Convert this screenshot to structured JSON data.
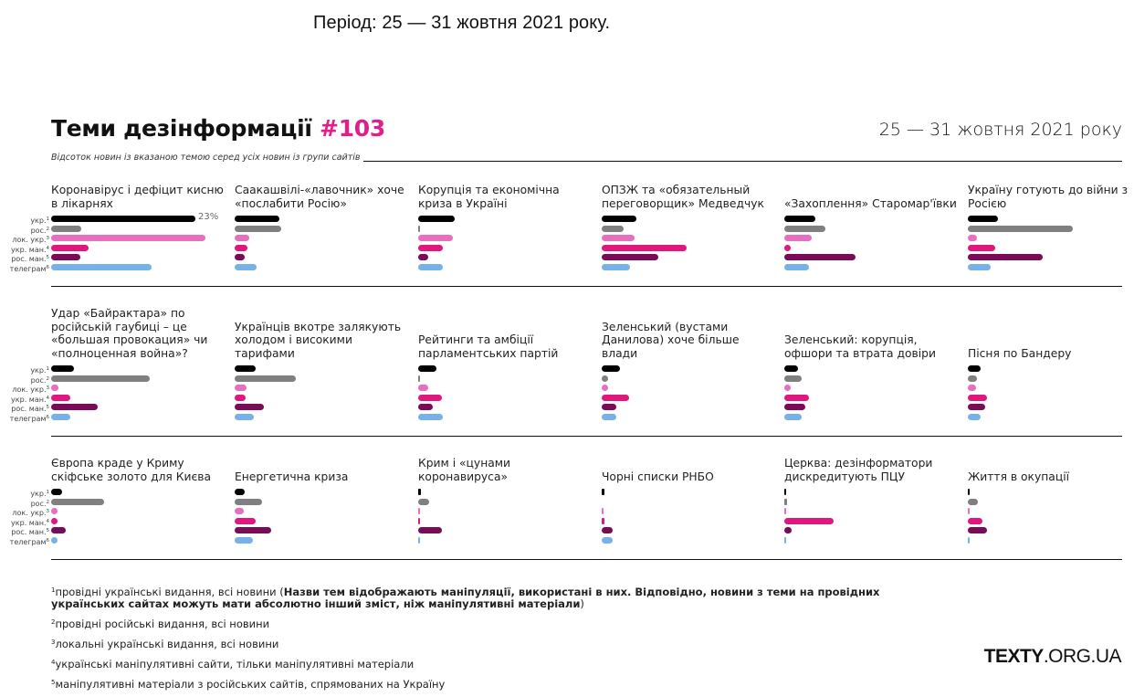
{
  "header": {
    "period_text": "Період: 25 — 31 жовтня 2021 року."
  },
  "chart_data": {
    "type": "bar",
    "title": "Теми дезінформації",
    "title_number": "#103",
    "date_range": "25 — 31 жовтня 2021 року",
    "subtitle": "Відсоток новин із вказаною темою серед усіх новин із групи сайтів",
    "unit": "%",
    "max_label": "23%",
    "xlim": [
      0,
      25
    ],
    "series": [
      {
        "key": "ukr",
        "label": "укр.",
        "note": "1",
        "color": "#000000"
      },
      {
        "key": "ros",
        "label": "рос.",
        "note": "2",
        "color": "#808080"
      },
      {
        "key": "lok_ukr",
        "label": "лок. укр.",
        "note": "3",
        "color": "#e86fbf"
      },
      {
        "key": "ukr_man",
        "label": "укр. ман.",
        "note": "4",
        "color": "#e0177d"
      },
      {
        "key": "ros_man",
        "label": "рос. ман.",
        "note": "5",
        "color": "#7a0b56"
      },
      {
        "key": "telegram",
        "label": "телеграм",
        "note": "6",
        "color": "#77b1ea"
      }
    ],
    "topics": [
      {
        "title": "Коронавірус і дефіцит кисню в лікарнях",
        "values": [
          23,
          4.8,
          24.6,
          6,
          4.7,
          16
        ],
        "labeled_value": "23%"
      },
      {
        "title": "Саакашвілі-«лавочник» хоче «послабити Росію»",
        "values": [
          7.1,
          7.4,
          2.3,
          2,
          1.6,
          3.5
        ]
      },
      {
        "title": "Корупція та економічна криза в Україні",
        "values": [
          5.8,
          0.3,
          5.5,
          3.9,
          1.6,
          3.9
        ]
      },
      {
        "title": "ОПЗЖ та «обязательный переговорщик» Медведчук",
        "values": [
          5.6,
          3.5,
          5.2,
          13.5,
          9,
          4.5
        ]
      },
      {
        "title": "«Захоплення» Старомар'ївки",
        "values": [
          5,
          6.5,
          4.3,
          0.8,
          11.3,
          3.9
        ]
      },
      {
        "title": "Україну готують до війни з Росією",
        "values": [
          4.8,
          16.8,
          1.5,
          4.4,
          11.9,
          3.6
        ]
      },
      {
        "title": "Удар «Байрактара» по російській гаубиці – це «большая провокация» чи «полноценная война»?",
        "values": [
          3.6,
          15.7,
          1.1,
          3,
          7.4,
          3.1
        ]
      },
      {
        "title": "Українців вкотре залякують холодом і високими тарифами",
        "values": [
          3.3,
          9.8,
          1.9,
          1.8,
          4.6,
          3
        ]
      },
      {
        "title": "Рейтинги та амбіції парламентських партій",
        "values": [
          2.9,
          0.1,
          1.6,
          3.8,
          2.3,
          4
        ]
      },
      {
        "title": "Зеленський (вустами Данилова) хоче більше влади",
        "values": [
          2.9,
          0.6,
          0.6,
          4.3,
          2.3,
          2.3
        ]
      },
      {
        "title": "Зеленський: корупція, офшори та втрата довіри",
        "values": [
          2.2,
          2.8,
          0.8,
          3.9,
          3.3,
          2.8
        ]
      },
      {
        "title": "Пісня по Бандеру",
        "values": [
          2,
          1.5,
          1.3,
          3,
          2.7,
          2.1
        ]
      },
      {
        "title": "Європа краде у Криму скіфське золото для Києва",
        "values": [
          1.7,
          8.5,
          0.6,
          0.9,
          2.4,
          1
        ]
      },
      {
        "title": "Енергетична криза",
        "values": [
          1.6,
          4.4,
          1.5,
          3.3,
          5.8,
          2.9
        ]
      },
      {
        "title": "Крим і «цунами коронавируса»",
        "values": [
          0.4,
          1.8,
          0.1,
          0.2,
          3.8,
          0.1
        ]
      },
      {
        "title": "Чорні списки РНБО",
        "values": [
          0.4,
          0,
          0.1,
          0.5,
          1.8,
          1.7
        ]
      },
      {
        "title": "Церква: дезінформатори дискредитують ПЦУ",
        "values": [
          0.3,
          0.5,
          0.1,
          7.9,
          1.2,
          0.2
        ]
      },
      {
        "title": "Життя в окупації",
        "values": [
          0.1,
          1.6,
          0.3,
          2.4,
          3,
          0.3
        ]
      }
    ]
  },
  "footnotes": [
    {
      "num": "1",
      "text": "провідні українські видання, всі новини (",
      "bold": "Назви тем відображають маніпуляції, використані в них. Відповідно, новини з теми на провідних українських сайтах можуть мати абсолютно інший зміст, ніж маніпулятивні матеріали",
      "after": ")"
    },
    {
      "num": "2",
      "text": "провідні російські видання, всі новини"
    },
    {
      "num": "3",
      "text": "локальні українські видання, всі новини"
    },
    {
      "num": "4",
      "text": "українські маніпулятивні сайти, тільки маніпулятивні матеріали"
    },
    {
      "num": "5",
      "text": "маніпулятивні матеріали з російських сайтів, спрямованих на Україну"
    }
  ],
  "logo": {
    "bold": "TEXTY",
    "rest": ".ORG.UA"
  }
}
